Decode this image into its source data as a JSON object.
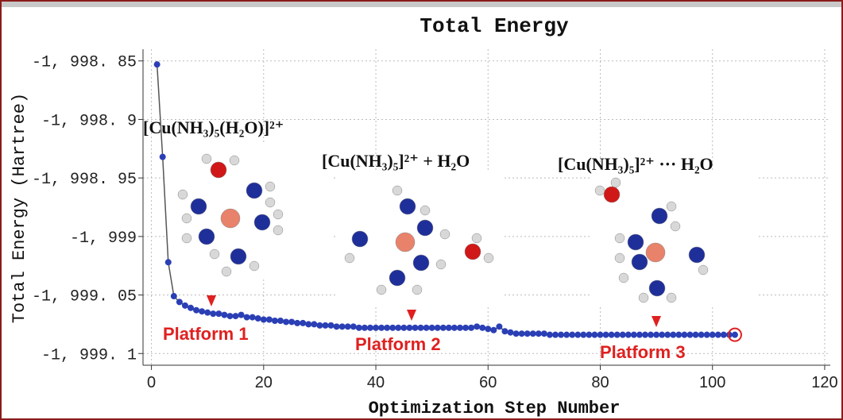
{
  "chart_data": {
    "type": "line",
    "title": "Total Energy",
    "x_label": "Optimization Step Number",
    "y_label": "Total Energy (Hartree)",
    "xlim": [
      -1.5,
      121
    ],
    "ylim": [
      -1999.11,
      -1998.84
    ],
    "xticks": [
      0,
      20,
      40,
      60,
      80,
      100,
      120
    ],
    "yticks": [
      {
        "value": -1998.85,
        "label": "-1, 998. 85"
      },
      {
        "value": -1998.9,
        "label": "-1, 998. 9"
      },
      {
        "value": -1998.95,
        "label": "-1, 998. 95"
      },
      {
        "value": -1999,
        "label": "-1, 999"
      },
      {
        "value": -1999.05,
        "label": "-1, 999. 05"
      },
      {
        "value": -1999.1,
        "label": "-1, 999. 1"
      }
    ],
    "grid": true,
    "x": [
      1,
      2,
      3,
      4,
      5,
      6,
      7,
      8,
      9,
      10,
      11,
      12,
      13,
      14,
      15,
      16,
      17,
      18,
      19,
      20,
      21,
      22,
      23,
      24,
      25,
      26,
      27,
      28,
      29,
      30,
      31,
      32,
      33,
      34,
      35,
      36,
      37,
      38,
      39,
      40,
      41,
      42,
      43,
      44,
      45,
      46,
      47,
      48,
      49,
      50,
      51,
      52,
      53,
      54,
      55,
      56,
      57,
      58,
      59,
      60,
      61,
      62,
      63,
      64,
      65,
      66,
      67,
      68,
      69,
      70,
      71,
      72,
      73,
      74,
      75,
      76,
      77,
      78,
      79,
      80,
      81,
      82,
      83,
      84,
      85,
      86,
      87,
      88,
      89,
      90,
      91,
      92,
      93,
      94,
      95,
      96,
      97,
      98,
      99,
      100,
      101,
      102,
      103,
      104
    ],
    "series": [
      {
        "color": "#2b3fb5",
        "line_color": "#555555",
        "values": [
          -1998.853,
          -1998.932,
          -1999.022,
          -1999.051,
          -1999.056,
          -1999.059,
          -1999.061,
          -1999.063,
          -1999.064,
          -1999.065,
          -1999.066,
          -1999.066,
          -1999.067,
          -1999.068,
          -1999.068,
          -1999.067,
          -1999.069,
          -1999.069,
          -1999.07,
          -1999.071,
          -1999.071,
          -1999.072,
          -1999.072,
          -1999.073,
          -1999.073,
          -1999.074,
          -1999.074,
          -1999.075,
          -1999.075,
          -1999.076,
          -1999.076,
          -1999.076,
          -1999.077,
          -1999.077,
          -1999.077,
          -1999.077,
          -1999.078,
          -1999.078,
          -1999.078,
          -1999.078,
          -1999.078,
          -1999.078,
          -1999.078,
          -1999.078,
          -1999.078,
          -1999.078,
          -1999.078,
          -1999.078,
          -1999.078,
          -1999.078,
          -1999.078,
          -1999.078,
          -1999.078,
          -1999.078,
          -1999.078,
          -1999.078,
          -1999.078,
          -1999.077,
          -1999.078,
          -1999.079,
          -1999.08,
          -1999.077,
          -1999.081,
          -1999.082,
          -1999.083,
          -1999.083,
          -1999.083,
          -1999.083,
          -1999.083,
          -1999.083,
          -1999.084,
          -1999.084,
          -1999.084,
          -1999.084,
          -1999.084,
          -1999.084,
          -1999.084,
          -1999.084,
          -1999.084,
          -1999.084,
          -1999.084,
          -1999.084,
          -1999.084,
          -1999.084,
          -1999.084,
          -1999.084,
          -1999.084,
          -1999.084,
          -1999.084,
          -1999.084,
          -1999.084,
          -1999.084,
          -1999.084,
          -1999.084,
          -1999.084,
          -1999.084,
          -1999.084,
          -1999.084,
          -1999.084,
          -1999.084,
          -1999.084,
          -1999.084,
          -1999.084,
          -1999.084
        ]
      }
    ],
    "highlight_color": "#e02020",
    "annotations": [
      {
        "text": "[Cu(NH₃)₅(H₂O)]²⁺"
      },
      {
        "text": "[Cu(NH₃)₅]²⁺ + H₂O"
      },
      {
        "text": "[Cu(NH₃)₅]²⁺ ··· H₂O"
      },
      {
        "text": "Platform 1"
      },
      {
        "text": "Platform 2"
      },
      {
        "text": "Platform 3"
      }
    ]
  }
}
